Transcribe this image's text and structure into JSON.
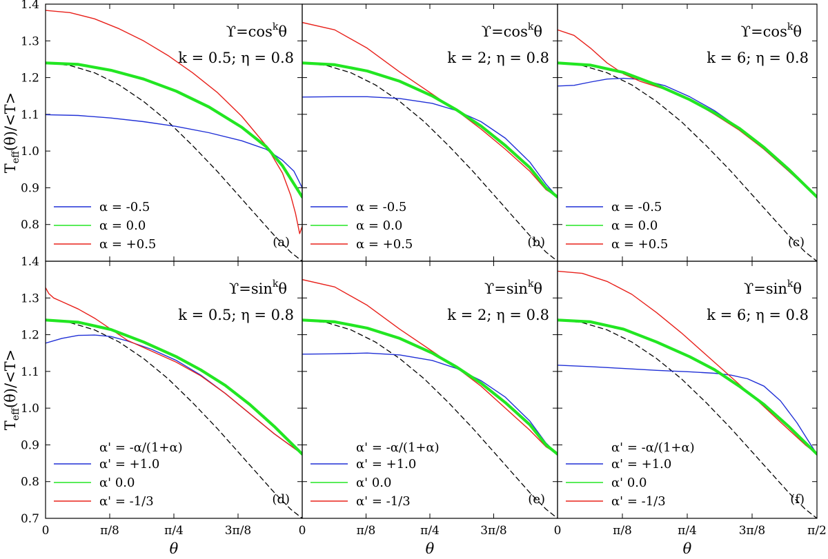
{
  "chart_data": {
    "type": "line",
    "layout": "2x3 grid, shared axes",
    "xlabel": "θ",
    "ylabel": "T_eff(θ)/<T>",
    "ylabel_parts": {
      "base": "T",
      "sub": "eff",
      "rest": "(θ)/<T>"
    },
    "xlim": [
      0,
      1.5708
    ],
    "ylim": [
      0.7,
      1.4
    ],
    "x_ticks": [
      {
        "value": 0,
        "label": "0"
      },
      {
        "value": 0.3927,
        "label": "π/8"
      },
      {
        "value": 0.7854,
        "label": "π/4"
      },
      {
        "value": 1.1781,
        "label": "3π/8"
      },
      {
        "value": 1.5708,
        "label": "π/2"
      }
    ],
    "y_ticks": [
      {
        "value": 0.7,
        "label": "0.7"
      },
      {
        "value": 0.8,
        "label": "0.8"
      },
      {
        "value": 0.9,
        "label": "0.9"
      },
      {
        "value": 1.0,
        "label": "1.0"
      },
      {
        "value": 1.1,
        "label": "1.1"
      },
      {
        "value": 1.2,
        "label": "1.2"
      },
      {
        "value": 1.3,
        "label": "1.3"
      },
      {
        "value": 1.4,
        "label": "1.4"
      }
    ],
    "series_colors": {
      "blue": "#1f2fd6",
      "green": "#22e622",
      "red": "#e8201a",
      "reference": "#000000"
    },
    "panels": [
      {
        "letter": "(a)",
        "func_base": "ϒ=cos",
        "exp": "k",
        "var": "θ",
        "params": "k = 0.5; η = 0.8",
        "legend_header": "",
        "series": [
          {
            "name": "α = -0.5",
            "color": "blue",
            "x": [
              0,
              0.2,
              0.4,
              0.6,
              0.8,
              1.0,
              1.2,
              1.35,
              1.45,
              1.52,
              1.5708
            ],
            "y": [
              1.099,
              1.097,
              1.09,
              1.08,
              1.067,
              1.05,
              1.028,
              1.005,
              0.975,
              0.945,
              0.9
            ]
          },
          {
            "name": "α =  0.0",
            "color": "green",
            "x": [
              0,
              0.2,
              0.4,
              0.6,
              0.8,
              1.0,
              1.2,
              1.35,
              1.45,
              1.5708
            ],
            "y": [
              1.24,
              1.236,
              1.22,
              1.196,
              1.163,
              1.12,
              1.065,
              1.012,
              0.96,
              0.875
            ]
          },
          {
            "name": "α = +0.5",
            "color": "red",
            "x": [
              0,
              0.15,
              0.3,
              0.45,
              0.6,
              0.75,
              0.9,
              1.05,
              1.2,
              1.35,
              1.45,
              1.5,
              1.53,
              1.555,
              1.5708
            ],
            "y": [
              1.383,
              1.377,
              1.36,
              1.333,
              1.3,
              1.26,
              1.213,
              1.16,
              1.095,
              1.015,
              0.94,
              0.88,
              0.83,
              0.775,
              0.795
            ]
          },
          {
            "name": "reference",
            "color": "reference",
            "dashed": true,
            "x": [
              0,
              0.15,
              0.3,
              0.45,
              0.6,
              0.75,
              0.9,
              1.05,
              1.2,
              1.3,
              1.4,
              1.5,
              1.5708
            ],
            "y": [
              1.24,
              1.233,
              1.213,
              1.18,
              1.135,
              1.08,
              1.015,
              0.945,
              0.87,
              0.82,
              0.77,
              0.725,
              0.7
            ]
          }
        ]
      },
      {
        "letter": "(b)",
        "func_base": "ϒ=cos",
        "exp": "k",
        "var": "θ",
        "params": "k = 2; η = 0.8",
        "legend_header": "",
        "series": [
          {
            "name": "α = -0.5",
            "color": "blue",
            "x": [
              0,
              0.2,
              0.4,
              0.6,
              0.8,
              0.95,
              1.1,
              1.25,
              1.4,
              1.5,
              1.5708
            ],
            "y": [
              1.147,
              1.148,
              1.148,
              1.143,
              1.13,
              1.11,
              1.08,
              1.035,
              0.97,
              0.91,
              0.875
            ]
          },
          {
            "name": "α =  0.0",
            "color": "green",
            "x": [
              0,
              0.2,
              0.4,
              0.6,
              0.8,
              0.95,
              1.1,
              1.25,
              1.4,
              1.5,
              1.5708
            ],
            "y": [
              1.24,
              1.235,
              1.218,
              1.19,
              1.15,
              1.112,
              1.068,
              1.015,
              0.955,
              0.9,
              0.875
            ]
          },
          {
            "name": "α = +0.5",
            "color": "red",
            "x": [
              0,
              0.2,
              0.4,
              0.6,
              0.8,
              0.95,
              1.1,
              1.25,
              1.4,
              1.5,
              1.5708
            ],
            "y": [
              1.35,
              1.33,
              1.28,
              1.215,
              1.155,
              1.11,
              1.06,
              1.005,
              0.945,
              0.895,
              0.875
            ]
          },
          {
            "name": "reference",
            "color": "reference",
            "dashed": true,
            "x": [
              0,
              0.15,
              0.3,
              0.45,
              0.6,
              0.75,
              0.9,
              1.05,
              1.2,
              1.3,
              1.4,
              1.5,
              1.5708
            ],
            "y": [
              1.24,
              1.233,
              1.213,
              1.18,
              1.135,
              1.08,
              1.015,
              0.945,
              0.87,
              0.82,
              0.77,
              0.725,
              0.7
            ]
          }
        ]
      },
      {
        "letter": "(c)",
        "func_base": "ϒ=cos",
        "exp": "k",
        "var": "θ",
        "params": "k = 6; η = 0.8",
        "legend_header": "",
        "series": [
          {
            "name": "α = -0.5",
            "color": "blue",
            "x": [
              0,
              0.1,
              0.2,
              0.3,
              0.4,
              0.5,
              0.65,
              0.8,
              0.95,
              1.1,
              1.25,
              1.4,
              1.5708
            ],
            "y": [
              1.177,
              1.179,
              1.188,
              1.196,
              1.198,
              1.195,
              1.178,
              1.148,
              1.11,
              1.063,
              1.005,
              0.945,
              0.875
            ]
          },
          {
            "name": "α =  0.0",
            "color": "green",
            "x": [
              0,
              0.2,
              0.4,
              0.6,
              0.8,
              0.95,
              1.1,
              1.25,
              1.4,
              1.5708
            ],
            "y": [
              1.24,
              1.234,
              1.214,
              1.18,
              1.14,
              1.104,
              1.062,
              1.01,
              0.95,
              0.875
            ]
          },
          {
            "name": "α = +0.5",
            "color": "red",
            "x": [
              0,
              0.1,
              0.2,
              0.3,
              0.4,
              0.5,
              0.65,
              0.8,
              0.95,
              1.1,
              1.25,
              1.4,
              1.5708
            ],
            "y": [
              1.33,
              1.315,
              1.28,
              1.24,
              1.21,
              1.19,
              1.168,
              1.14,
              1.1,
              1.057,
              1.005,
              0.945,
              0.875
            ]
          },
          {
            "name": "reference",
            "color": "reference",
            "dashed": true,
            "x": [
              0,
              0.15,
              0.3,
              0.45,
              0.6,
              0.75,
              0.9,
              1.05,
              1.2,
              1.3,
              1.4,
              1.5,
              1.5708
            ],
            "y": [
              1.24,
              1.233,
              1.213,
              1.18,
              1.135,
              1.08,
              1.015,
              0.945,
              0.87,
              0.82,
              0.77,
              0.725,
              0.7
            ]
          }
        ]
      },
      {
        "letter": "(d)",
        "func_base": "ϒ=sin",
        "exp": "k",
        "var": "θ",
        "params": "k = 0.5; η = 0.8",
        "legend_header": "α' = -α/(1+α)",
        "series": [
          {
            "name": "α' = +1.0",
            "color": "blue",
            "x": [
              0,
              0.1,
              0.2,
              0.3,
              0.4,
              0.5,
              0.65,
              0.8,
              0.95,
              1.1,
              1.25,
              1.4,
              1.5708
            ],
            "y": [
              1.177,
              1.19,
              1.198,
              1.199,
              1.195,
              1.183,
              1.16,
              1.13,
              1.09,
              1.04,
              0.985,
              0.93,
              0.875
            ]
          },
          {
            "name": "α'  0.0",
            "color": "green",
            "x": [
              0,
              0.2,
              0.4,
              0.6,
              0.8,
              0.95,
              1.1,
              1.25,
              1.4,
              1.5708
            ],
            "y": [
              1.24,
              1.234,
              1.214,
              1.18,
              1.14,
              1.104,
              1.062,
              1.01,
              0.95,
              0.875
            ]
          },
          {
            "name": "α' = -1/3",
            "color": "red",
            "x": [
              0,
              0.02,
              0.05,
              0.1,
              0.2,
              0.3,
              0.4,
              0.5,
              0.65,
              0.8,
              0.95,
              1.1,
              1.25,
              1.4,
              1.5708
            ],
            "y": [
              1.328,
              1.312,
              1.3,
              1.29,
              1.27,
              1.245,
              1.215,
              1.185,
              1.155,
              1.125,
              1.088,
              1.04,
              0.985,
              0.93,
              0.875
            ]
          },
          {
            "name": "reference",
            "color": "reference",
            "dashed": true,
            "x": [
              0,
              0.15,
              0.3,
              0.45,
              0.6,
              0.75,
              0.9,
              1.05,
              1.2,
              1.3,
              1.4,
              1.5,
              1.5708
            ],
            "y": [
              1.24,
              1.233,
              1.213,
              1.18,
              1.135,
              1.08,
              1.015,
              0.945,
              0.87,
              0.82,
              0.77,
              0.725,
              0.7
            ]
          }
        ]
      },
      {
        "letter": "(e)",
        "func_base": "ϒ=sin",
        "exp": "k",
        "var": "θ",
        "params": "k = 2; η = 0.8",
        "legend_header": "α' = -α/(1+α)",
        "series": [
          {
            "name": "α' = +1.0",
            "color": "blue",
            "x": [
              0,
              0.2,
              0.4,
              0.6,
              0.8,
              0.95,
              1.1,
              1.25,
              1.4,
              1.5,
              1.5708
            ],
            "y": [
              1.147,
              1.148,
              1.15,
              1.145,
              1.13,
              1.108,
              1.075,
              1.03,
              0.965,
              0.905,
              0.875
            ]
          },
          {
            "name": "α'  0.0",
            "color": "green",
            "x": [
              0,
              0.2,
              0.4,
              0.6,
              0.8,
              0.95,
              1.1,
              1.25,
              1.4,
              1.5,
              1.5708
            ],
            "y": [
              1.24,
              1.235,
              1.218,
              1.19,
              1.15,
              1.112,
              1.068,
              1.015,
              0.955,
              0.9,
              0.875
            ]
          },
          {
            "name": "α' = -1/3",
            "color": "red",
            "x": [
              0,
              0.2,
              0.4,
              0.6,
              0.8,
              0.95,
              1.1,
              1.25,
              1.4,
              1.5,
              1.5708
            ],
            "y": [
              1.35,
              1.33,
              1.28,
              1.215,
              1.155,
              1.11,
              1.06,
              1.0,
              0.94,
              0.895,
              0.875
            ]
          },
          {
            "name": "reference",
            "color": "reference",
            "dashed": true,
            "x": [
              0,
              0.15,
              0.3,
              0.45,
              0.6,
              0.75,
              0.9,
              1.05,
              1.2,
              1.3,
              1.4,
              1.5,
              1.5708
            ],
            "y": [
              1.24,
              1.233,
              1.213,
              1.18,
              1.135,
              1.08,
              1.015,
              0.945,
              0.87,
              0.82,
              0.77,
              0.725,
              0.7
            ]
          }
        ]
      },
      {
        "letter": "(f)",
        "func_base": "ϒ=sin",
        "exp": "k",
        "var": "θ",
        "params": "k = 6; η = 0.8",
        "legend_header": "α' = -α/(1+α)",
        "series": [
          {
            "name": "α' = +1.0",
            "color": "blue",
            "x": [
              0,
              0.2,
              0.4,
              0.6,
              0.8,
              0.95,
              1.05,
              1.15,
              1.25,
              1.35,
              1.45,
              1.52,
              1.5708
            ],
            "y": [
              1.117,
              1.113,
              1.108,
              1.103,
              1.099,
              1.095,
              1.09,
              1.08,
              1.06,
              1.02,
              0.96,
              0.91,
              0.875
            ]
          },
          {
            "name": "α'  0.0",
            "color": "green",
            "x": [
              0,
              0.2,
              0.4,
              0.6,
              0.8,
              0.95,
              1.1,
              1.25,
              1.4,
              1.5708
            ],
            "y": [
              1.24,
              1.235,
              1.215,
              1.18,
              1.14,
              1.105,
              1.06,
              1.01,
              0.95,
              0.875
            ]
          },
          {
            "name": "α' = -1/3",
            "color": "red",
            "x": [
              0,
              0.15,
              0.3,
              0.45,
              0.6,
              0.75,
              0.9,
              1.05,
              1.2,
              1.35,
              1.5,
              1.5708
            ],
            "y": [
              1.373,
              1.367,
              1.345,
              1.31,
              1.26,
              1.205,
              1.145,
              1.085,
              1.025,
              0.962,
              0.9,
              0.875
            ]
          },
          {
            "name": "reference",
            "color": "reference",
            "dashed": true,
            "x": [
              0,
              0.15,
              0.3,
              0.45,
              0.6,
              0.75,
              0.9,
              1.05,
              1.2,
              1.3,
              1.4,
              1.5,
              1.5708
            ],
            "y": [
              1.24,
              1.233,
              1.213,
              1.18,
              1.135,
              1.08,
              1.015,
              0.945,
              0.87,
              0.82,
              0.77,
              0.725,
              0.7
            ]
          }
        ]
      }
    ]
  }
}
